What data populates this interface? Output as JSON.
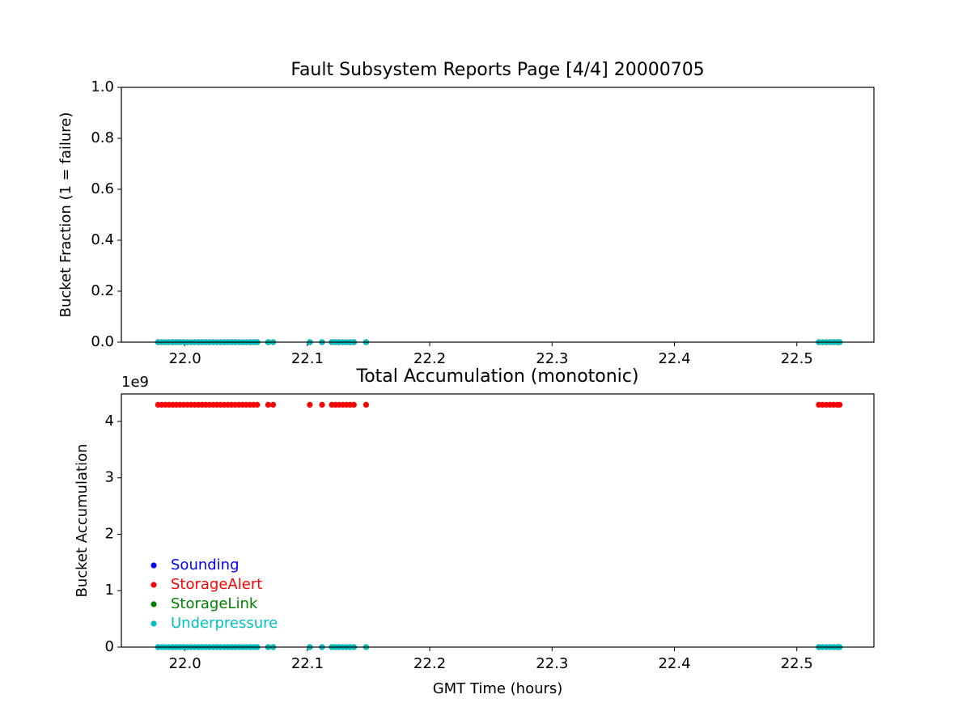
{
  "chart_data": [
    {
      "type": "scatter",
      "title": "Fault Subsystem Reports Page [4/4] 20000705",
      "y_label": "Bucket Fraction (1 = failure)",
      "x": [
        21.978,
        21.981,
        21.984,
        21.987,
        21.99,
        21.993,
        21.996,
        21.999,
        22.002,
        22.005,
        22.008,
        22.011,
        22.014,
        22.017,
        22.02,
        22.023,
        22.026,
        22.029,
        22.032,
        22.035,
        22.038,
        22.041,
        22.044,
        22.047,
        22.05,
        22.053,
        22.056,
        22.059,
        22.068,
        22.072,
        22.102,
        22.112,
        22.12,
        22.123,
        22.126,
        22.129,
        22.132,
        22.135,
        22.138,
        22.148,
        22.518,
        22.521,
        22.524,
        22.527,
        22.53,
        22.533,
        22.535
      ],
      "series": [
        {
          "name": "Sounding",
          "color": "#0000ff",
          "values": [
            0,
            0,
            0,
            0,
            0,
            0,
            0,
            0,
            0,
            0,
            0,
            0,
            0,
            0,
            0,
            0,
            0,
            0,
            0,
            0,
            0,
            0,
            0,
            0,
            0,
            0,
            0,
            0,
            0,
            0,
            0,
            0,
            0,
            0,
            0,
            0,
            0,
            0,
            0,
            0,
            0,
            0,
            0,
            0,
            0,
            0,
            0
          ]
        },
        {
          "name": "StorageAlert",
          "color": "#ff0000",
          "values": [
            0,
            0,
            0,
            0,
            0,
            0,
            0,
            0,
            0,
            0,
            0,
            0,
            0,
            0,
            0,
            0,
            0,
            0,
            0,
            0,
            0,
            0,
            0,
            0,
            0,
            0,
            0,
            0,
            0,
            0,
            0,
            0,
            0,
            0,
            0,
            0,
            0,
            0,
            0,
            0,
            0,
            0,
            0,
            0,
            0,
            0,
            0
          ]
        },
        {
          "name": "StorageLink",
          "color": "#008000",
          "values": [
            0,
            0,
            0,
            0,
            0,
            0,
            0,
            0,
            0,
            0,
            0,
            0,
            0,
            0,
            0,
            0,
            0,
            0,
            0,
            0,
            0,
            0,
            0,
            0,
            0,
            0,
            0,
            0,
            0,
            0,
            0,
            0,
            0,
            0,
            0,
            0,
            0,
            0,
            0,
            0,
            0,
            0,
            0,
            0,
            0,
            0,
            0
          ]
        },
        {
          "name": "Underpressure",
          "color": "#00bfbf",
          "values": [
            0,
            0,
            0,
            0,
            0,
            0,
            0,
            0,
            0,
            0,
            0,
            0,
            0,
            0,
            0,
            0,
            0,
            0,
            0,
            0,
            0,
            0,
            0,
            0,
            0,
            0,
            0,
            0,
            0,
            0,
            0,
            0,
            0,
            0,
            0,
            0,
            0,
            0,
            0,
            0,
            0,
            0,
            0,
            0,
            0,
            0,
            0
          ]
        }
      ],
      "xlim": [
        21.948,
        22.563
      ],
      "xticks": [
        {
          "value": 22,
          "label": "22.0"
        },
        22.1,
        22.2,
        22.3,
        22.4,
        22.5
      ],
      "ylim": [
        0,
        1
      ],
      "yticks": [
        {
          "value": 0,
          "label": "0.0"
        },
        0.2,
        0.4,
        0.6,
        0.8,
        {
          "value": 1,
          "label": "1.0"
        }
      ],
      "legend": false
    },
    {
      "type": "scatter",
      "title": "Total Accumulation (monotonic)",
      "x_label": "GMT Time (hours)",
      "y_label": "Bucket Accumulation",
      "y_offset_label": "1e9",
      "x": [
        21.978,
        21.981,
        21.984,
        21.987,
        21.99,
        21.993,
        21.996,
        21.999,
        22.002,
        22.005,
        22.008,
        22.011,
        22.014,
        22.017,
        22.02,
        22.023,
        22.026,
        22.029,
        22.032,
        22.035,
        22.038,
        22.041,
        22.044,
        22.047,
        22.05,
        22.053,
        22.056,
        22.059,
        22.068,
        22.072,
        22.102,
        22.112,
        22.12,
        22.123,
        22.126,
        22.129,
        22.132,
        22.135,
        22.138,
        22.148,
        22.518,
        22.521,
        22.524,
        22.527,
        22.53,
        22.533,
        22.535
      ],
      "series": [
        {
          "name": "Sounding",
          "color": "#0000ff",
          "values": [
            0,
            0,
            0,
            0,
            0,
            0,
            0,
            0,
            0,
            0,
            0,
            0,
            0,
            0,
            0,
            0,
            0,
            0,
            0,
            0,
            0,
            0,
            0,
            0,
            0,
            0,
            0,
            0,
            0,
            0,
            0,
            0,
            0,
            0,
            0,
            0,
            0,
            0,
            0,
            0,
            0,
            0,
            0,
            0,
            0,
            0,
            0
          ]
        },
        {
          "name": "StorageAlert",
          "color": "#ff0000",
          "values": [
            4294967296,
            4294967296,
            4294967296,
            4294967296,
            4294967296,
            4294967296,
            4294967296,
            4294967296,
            4294967296,
            4294967296,
            4294967296,
            4294967296,
            4294967296,
            4294967296,
            4294967296,
            4294967296,
            4294967296,
            4294967296,
            4294967296,
            4294967296,
            4294967296,
            4294967296,
            4294967296,
            4294967296,
            4294967296,
            4294967296,
            4294967296,
            4294967296,
            4294967296,
            4294967296,
            4294967296,
            4294967296,
            4294967296,
            4294967296,
            4294967296,
            4294967296,
            4294967296,
            4294967296,
            4294967296,
            4294967296,
            4294967296,
            4294967296,
            4294967296,
            4294967296,
            4294967296,
            4294967296,
            4294967296
          ]
        },
        {
          "name": "StorageLink",
          "color": "#008000",
          "values": [
            0,
            0,
            0,
            0,
            0,
            0,
            0,
            0,
            0,
            0,
            0,
            0,
            0,
            0,
            0,
            0,
            0,
            0,
            0,
            0,
            0,
            0,
            0,
            0,
            0,
            0,
            0,
            0,
            0,
            0,
            0,
            0,
            0,
            0,
            0,
            0,
            0,
            0,
            0,
            0,
            0,
            0,
            0,
            0,
            0,
            0,
            0
          ]
        },
        {
          "name": "Underpressure",
          "color": "#00bfbf",
          "values": [
            0,
            0,
            0,
            0,
            0,
            0,
            0,
            0,
            0,
            0,
            0,
            0,
            0,
            0,
            0,
            0,
            0,
            0,
            0,
            0,
            0,
            0,
            0,
            0,
            0,
            0,
            0,
            0,
            0,
            0,
            0,
            0,
            0,
            0,
            0,
            0,
            0,
            0,
            0,
            0,
            0,
            0,
            0,
            0,
            0,
            0,
            0
          ]
        }
      ],
      "xlim": [
        21.948,
        22.563
      ],
      "xticks": [
        {
          "value": 22,
          "label": "22.0"
        },
        22.1,
        22.2,
        22.3,
        22.4,
        22.5
      ],
      "ylim": [
        0,
        4487000000
      ],
      "yticks": [
        0,
        {
          "value": 1000000000,
          "label": "1"
        },
        {
          "value": 2000000000,
          "label": "2"
        },
        {
          "value": 3000000000,
          "label": "3"
        },
        {
          "value": 4000000000,
          "label": "4"
        }
      ],
      "legend": "lower left"
    }
  ]
}
